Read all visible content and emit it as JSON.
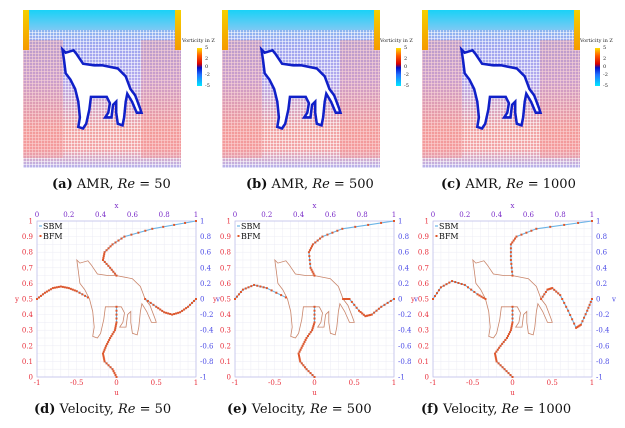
{
  "colors": {
    "sbm": "#6ab4e6",
    "bfm": "#e0562a",
    "cat": "#c9856a",
    "left_axis": "#e8303c",
    "right_axis": "#4a4ae6",
    "grid": "#ececf4"
  },
  "colorbar": {
    "title": "Vorticity in Z",
    "ticks": [
      "5",
      "2",
      "0",
      "-2",
      "-5"
    ]
  },
  "panels": [
    {
      "tag": "(a)",
      "text": "AMR, ",
      "re_label": "Re",
      "re_value": " = 50"
    },
    {
      "tag": "(b)",
      "text": "AMR, ",
      "re_label": "Re",
      "re_value": " = 500"
    },
    {
      "tag": "(c)",
      "text": "AMR, ",
      "re_label": "Re",
      "re_value": " = 1000"
    },
    {
      "tag": "(d)",
      "text": "Velocity, ",
      "re_label": "Re",
      "re_value": " = 50"
    },
    {
      "tag": "(e)",
      "text": "Velocity, ",
      "re_label": "Re",
      "re_value": " = 500"
    },
    {
      "tag": "(f)",
      "text": "Velocity, ",
      "re_label": "Re",
      "re_value": " = 1000"
    }
  ],
  "chart_data": [
    {
      "type": "line",
      "title": "",
      "legend": [
        "SBM",
        "BFM"
      ],
      "legend_position": "top-left",
      "grid": true,
      "xlabel_top": "x",
      "xlabel_bottom": "u",
      "ylabel_left": "y",
      "ylabel_right": "v",
      "top_ticks": [
        "0",
        "0.2",
        "0.4",
        "0.6",
        "0.8",
        "1"
      ],
      "bottom_ticks": [
        "-1",
        "-0.5",
        "0",
        "0.5",
        "1"
      ],
      "left_ticks": [
        "0",
        "0.1",
        "0.2",
        "0.3",
        "0.4",
        "0.5",
        "0.6",
        "0.7",
        "0.8",
        "0.9",
        "1"
      ],
      "right_ticks": [
        "-1",
        "-0.8",
        "-0.6",
        "-0.4",
        "-0.2",
        "0",
        "0.2",
        "0.4",
        "0.6",
        "0.8",
        "1"
      ],
      "u_vs_y": [
        [
          [
            0,
            0
          ],
          [
            -0.05,
            0.05
          ],
          [
            -0.15,
            0.1
          ],
          [
            -0.17,
            0.15
          ],
          [
            -0.13,
            0.2
          ],
          [
            -0.08,
            0.25
          ],
          [
            -0.02,
            0.3
          ],
          [
            0,
            0.35
          ],
          [
            0,
            0.45
          ]
        ],
        [
          [
            0,
            0.65
          ],
          [
            -0.08,
            0.7
          ],
          [
            -0.17,
            0.75
          ],
          [
            -0.15,
            0.8
          ],
          [
            -0.05,
            0.85
          ],
          [
            0.1,
            0.9
          ],
          [
            0.45,
            0.95
          ],
          [
            1,
            1
          ]
        ]
      ],
      "x_vs_v": [
        [
          [
            0,
            0
          ],
          [
            0.05,
            0.08
          ],
          [
            0.1,
            0.14
          ],
          [
            0.15,
            0.16
          ],
          [
            0.2,
            0.14
          ],
          [
            0.25,
            0.1
          ],
          [
            0.32,
            0.02
          ]
        ],
        [
          [
            0.68,
            0
          ],
          [
            0.75,
            -0.1
          ],
          [
            0.8,
            -0.17
          ],
          [
            0.85,
            -0.2
          ],
          [
            0.9,
            -0.17
          ],
          [
            0.95,
            -0.1
          ],
          [
            1,
            0
          ]
        ]
      ]
    },
    {
      "type": "line",
      "title": "",
      "legend": [
        "SBM",
        "BFM"
      ],
      "legend_position": "top-left",
      "grid": true,
      "xlabel_top": "x",
      "xlabel_bottom": "u",
      "ylabel_left": "y",
      "ylabel_right": "v",
      "top_ticks": [
        "0",
        "0.2",
        "0.4",
        "0.6",
        "0.8",
        "1"
      ],
      "bottom_ticks": [
        "-1",
        "-0.5",
        "0",
        "0.5",
        "1"
      ],
      "left_ticks": [
        "0",
        "0.1",
        "0.2",
        "0.3",
        "0.4",
        "0.5",
        "0.6",
        "0.7",
        "0.8",
        "0.9",
        "1"
      ],
      "right_ticks": [
        "-1",
        "-0.8",
        "-0.6",
        "-0.4",
        "-0.2",
        "0",
        "0.2",
        "0.4",
        "0.6",
        "0.8",
        "1"
      ],
      "u_vs_y": [
        [
          [
            0,
            0
          ],
          [
            -0.1,
            0.05
          ],
          [
            -0.18,
            0.1
          ],
          [
            -0.2,
            0.15
          ],
          [
            -0.15,
            0.2
          ],
          [
            -0.1,
            0.25
          ],
          [
            -0.03,
            0.3
          ],
          [
            0,
            0.35
          ],
          [
            0,
            0.45
          ]
        ],
        [
          [
            0,
            0.65
          ],
          [
            -0.05,
            0.7
          ],
          [
            -0.07,
            0.8
          ],
          [
            -0.02,
            0.85
          ],
          [
            0.1,
            0.9
          ],
          [
            0.35,
            0.95
          ],
          [
            1,
            1
          ]
        ]
      ],
      "x_vs_v": [
        [
          [
            0,
            0
          ],
          [
            0.05,
            0.12
          ],
          [
            0.12,
            0.18
          ],
          [
            0.2,
            0.14
          ],
          [
            0.32,
            0.02
          ]
        ],
        [
          [
            0.68,
            0
          ],
          [
            0.72,
            0
          ],
          [
            0.78,
            -0.15
          ],
          [
            0.82,
            -0.22
          ],
          [
            0.86,
            -0.2
          ],
          [
            0.92,
            -0.1
          ],
          [
            1,
            0
          ]
        ]
      ]
    },
    {
      "type": "line",
      "title": "",
      "legend": [
        "SBM",
        "BFM"
      ],
      "legend_position": "top-left",
      "grid": true,
      "xlabel_top": "x",
      "xlabel_bottom": "u",
      "ylabel_left": "y",
      "ylabel_right": "v",
      "top_ticks": [
        "0",
        "0.2",
        "0.4",
        "0.6",
        "0.8",
        "1"
      ],
      "bottom_ticks": [
        "-1",
        "-0.5",
        "0",
        "0.5",
        "1"
      ],
      "left_ticks": [
        "0",
        "0.1",
        "0.2",
        "0.3",
        "0.4",
        "0.5",
        "0.6",
        "0.7",
        "0.8",
        "0.9",
        "1"
      ],
      "right_ticks": [
        "-1",
        "-0.8",
        "-0.6",
        "-0.4",
        "-0.2",
        "0",
        "0.2",
        "0.4",
        "0.6",
        "0.8",
        "1"
      ],
      "u_vs_y": [
        [
          [
            0,
            0
          ],
          [
            -0.1,
            0.05
          ],
          [
            -0.2,
            0.1
          ],
          [
            -0.22,
            0.15
          ],
          [
            -0.15,
            0.2
          ],
          [
            -0.07,
            0.25
          ],
          [
            -0.02,
            0.3
          ],
          [
            0,
            0.35
          ],
          [
            0,
            0.45
          ]
        ],
        [
          [
            0,
            0.65
          ],
          [
            -0.02,
            0.75
          ],
          [
            -0.02,
            0.85
          ],
          [
            0.05,
            0.9
          ],
          [
            0.3,
            0.95
          ],
          [
            1,
            1
          ]
        ]
      ],
      "x_vs_v": [
        [
          [
            0,
            0
          ],
          [
            0.05,
            0.15
          ],
          [
            0.12,
            0.23
          ],
          [
            0.2,
            0.18
          ],
          [
            0.28,
            0.06
          ],
          [
            0.33,
            0
          ]
        ],
        [
          [
            0.68,
            0
          ],
          [
            0.72,
            0.12
          ],
          [
            0.75,
            0.14
          ],
          [
            0.8,
            0.05
          ],
          [
            0.85,
            -0.15
          ],
          [
            0.9,
            -0.37
          ],
          [
            0.93,
            -0.33
          ],
          [
            0.97,
            -0.15
          ],
          [
            1,
            0
          ]
        ]
      ]
    }
  ]
}
